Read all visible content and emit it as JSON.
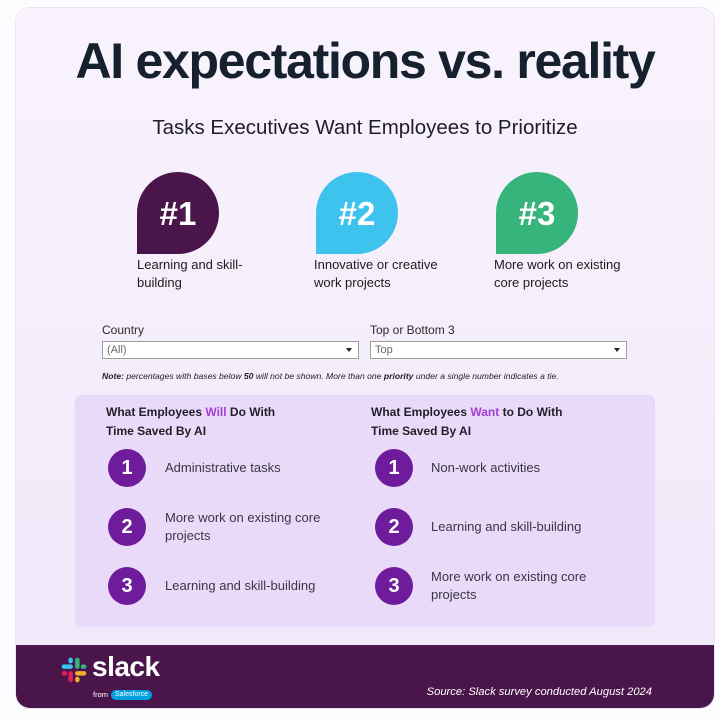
{
  "title": "AI expectations vs. reality",
  "subtitle": "Tasks Executives Want Employees to Prioritize",
  "priorities": [
    {
      "rank": "#1",
      "label": "Learning and skill-building",
      "color": "#4a154b"
    },
    {
      "rank": "#2",
      "label": "Innovative or creative work projects",
      "color": "#3ec3ef"
    },
    {
      "rank": "#3",
      "label": "More work on existing core projects",
      "color": "#37b47b"
    }
  ],
  "filters": {
    "country": {
      "label": "Country",
      "value": "(All)"
    },
    "rank_mode": {
      "label": "Top or Bottom 3",
      "value": "Top"
    }
  },
  "note": {
    "label": "Note:",
    "text_1": " percentages with bases below ",
    "threshold": "50",
    "text_2": " will not be shown. More than one ",
    "emphasis": "priority",
    "text_3": " under a single number indicates a tie."
  },
  "will_do": {
    "heading": {
      "before": "What Employees ",
      "highlight": "Will",
      "after": " Do With",
      "line2": "Time Saved By AI"
    },
    "items": [
      {
        "number": "1",
        "label": "Administrative tasks"
      },
      {
        "number": "2",
        "label": "More work on existing core projects"
      },
      {
        "number": "3",
        "label": "Learning and skill-building"
      }
    ]
  },
  "want_do": {
    "heading": {
      "before": "What Employees ",
      "highlight": "Want",
      "after": " to Do With",
      "line2": "Time Saved By AI"
    },
    "items": [
      {
        "number": "1",
        "label": "Non-work activities"
      },
      {
        "number": "2",
        "label": "Learning and skill-building"
      },
      {
        "number": "3",
        "label": "More work on existing core projects"
      }
    ]
  },
  "footer": {
    "brand": "slack",
    "from": "from",
    "parent": "Salesforce",
    "source": "Source: Slack survey conducted August 2024"
  },
  "colors": {
    "highlight": "#a23fd2",
    "panel": "#eadaf9",
    "number_circle": "#6e1c9c",
    "footer": "#4a154b",
    "salesforce_cloud": "#00a1e0",
    "slack_blue": "#36c5f0",
    "slack_green": "#2eb67d",
    "slack_yellow": "#ecb22e",
    "slack_red": "#e01e5a"
  }
}
